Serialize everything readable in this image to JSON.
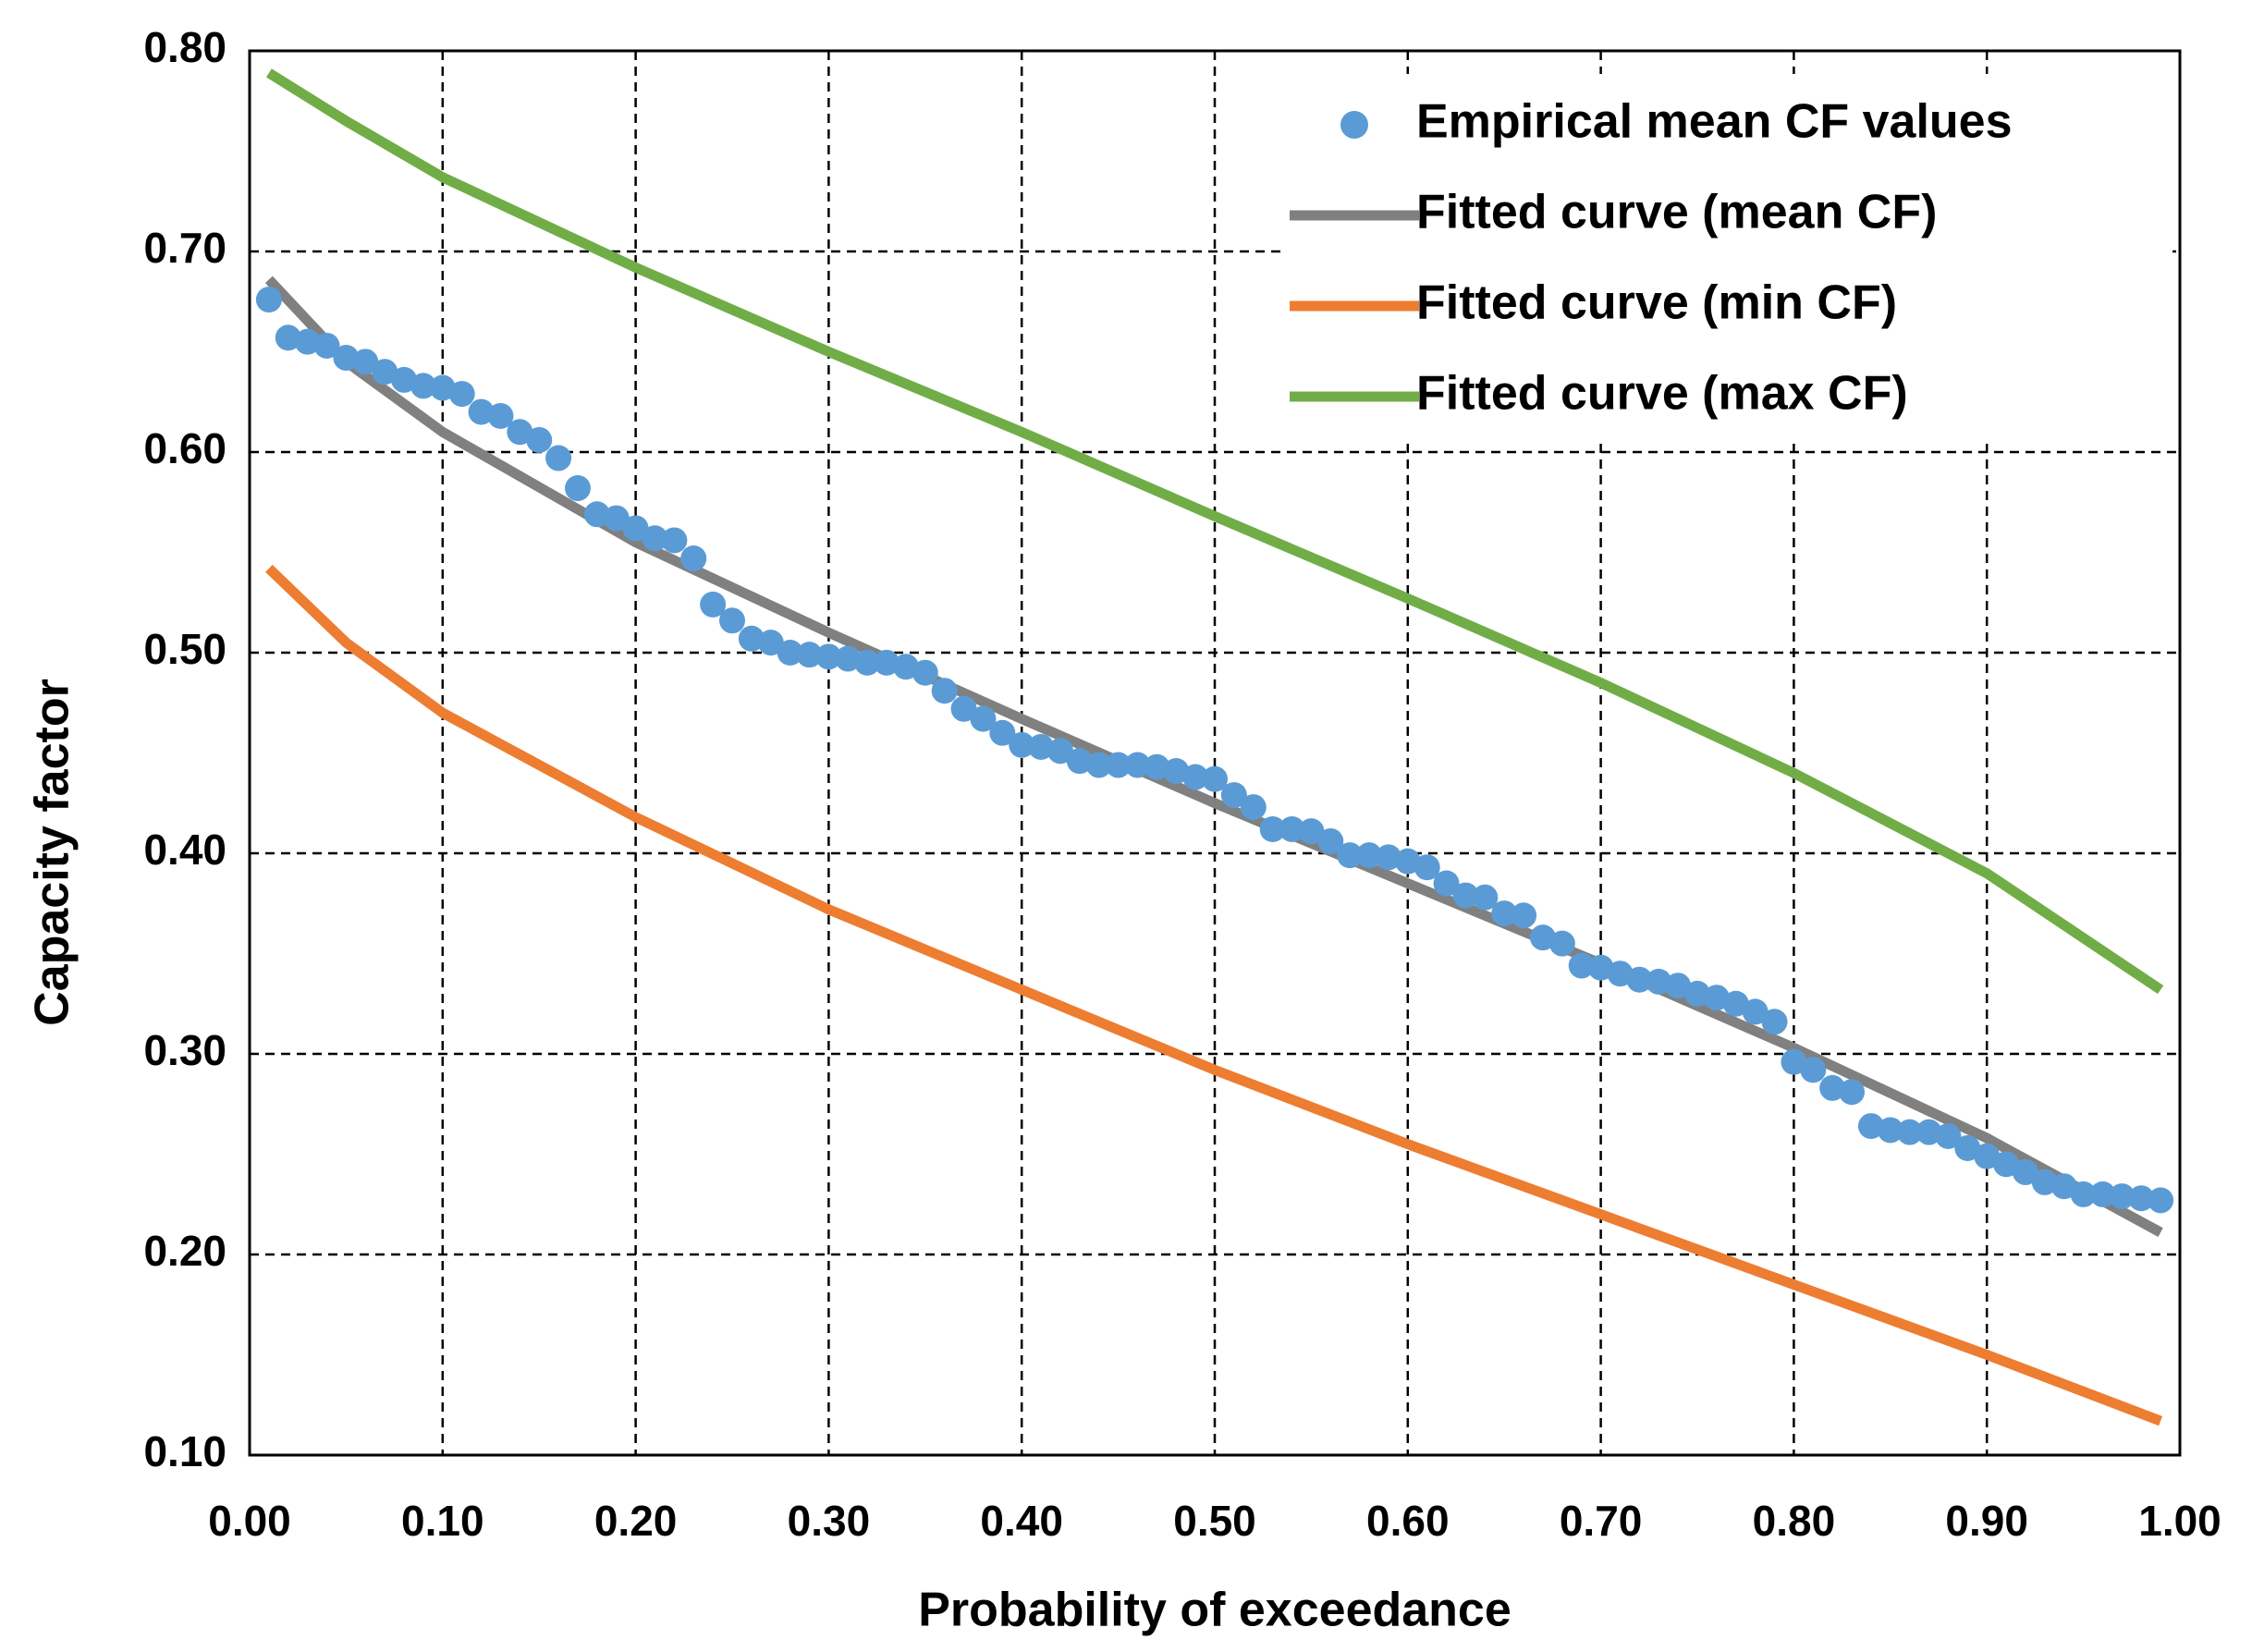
{
  "chart_data": {
    "type": "scatter",
    "xlabel": "Probability of exceedance",
    "ylabel": "Capacity factor",
    "xlim": [
      0,
      1
    ],
    "ylim": [
      0.1,
      0.8
    ],
    "xticks": [
      {
        "value": 0,
        "label": "0.00"
      },
      {
        "value": 0.1,
        "label": "0.10"
      },
      {
        "value": 0.2,
        "label": "0.20"
      },
      {
        "value": 0.3,
        "label": "0.30"
      },
      {
        "value": 0.4,
        "label": "0.40"
      },
      {
        "value": 0.5,
        "label": "0.50"
      },
      {
        "value": 0.6,
        "label": "0.60"
      },
      {
        "value": 0.7,
        "label": "0.70"
      },
      {
        "value": 0.8,
        "label": "0.80"
      },
      {
        "value": 0.9,
        "label": "0.90"
      },
      {
        "value": 1,
        "label": "1.00"
      }
    ],
    "yticks": [
      {
        "value": 0.1,
        "label": "0.10"
      },
      0.2,
      0.3,
      0.4,
      0.5,
      0.6,
      0.7,
      0.8
    ],
    "yticks_note_removed": null,
    "grid": true,
    "legend": "upper right",
    "series": [
      {
        "name": "Empirical mean CF values",
        "kind": "markers",
        "color": "#5b9bd5",
        "x": [
          0.01,
          0.02,
          0.03,
          0.04,
          0.05,
          0.06,
          0.07,
          0.08,
          0.09,
          0.1,
          0.11,
          0.12,
          0.13,
          0.14,
          0.15,
          0.16,
          0.17,
          0.18,
          0.19,
          0.2,
          0.21,
          0.22,
          0.23,
          0.24,
          0.25,
          0.26,
          0.27,
          0.28,
          0.29,
          0.3,
          0.31,
          0.32,
          0.33,
          0.34,
          0.35,
          0.36,
          0.37,
          0.38,
          0.39,
          0.4,
          0.41,
          0.42,
          0.43,
          0.44,
          0.45,
          0.46,
          0.47,
          0.48,
          0.49,
          0.5,
          0.51,
          0.52,
          0.53,
          0.54,
          0.55,
          0.56,
          0.57,
          0.58,
          0.59,
          0.6,
          0.61,
          0.62,
          0.63,
          0.64,
          0.65,
          0.66,
          0.67,
          0.68,
          0.69,
          0.7,
          0.71,
          0.72,
          0.73,
          0.74,
          0.75,
          0.76,
          0.77,
          0.78,
          0.79,
          0.8,
          0.81,
          0.82,
          0.83,
          0.84,
          0.85,
          0.86,
          0.87,
          0.88,
          0.89,
          0.9,
          0.91,
          0.92,
          0.93,
          0.94,
          0.95,
          0.96,
          0.97,
          0.98,
          0.99
        ],
        "values": [
          0.676,
          0.657,
          0.655,
          0.653,
          0.647,
          0.645,
          0.64,
          0.636,
          0.633,
          0.632,
          0.629,
          0.62,
          0.618,
          0.61,
          0.606,
          0.597,
          0.582,
          0.569,
          0.567,
          0.562,
          0.557,
          0.556,
          0.547,
          0.524,
          0.516,
          0.507,
          0.505,
          0.5,
          0.499,
          0.498,
          0.497,
          0.495,
          0.495,
          0.493,
          0.49,
          0.481,
          0.472,
          0.467,
          0.46,
          0.454,
          0.453,
          0.451,
          0.446,
          0.444,
          0.444,
          0.444,
          0.443,
          0.441,
          0.438,
          0.437,
          0.429,
          0.423,
          0.412,
          0.412,
          0.411,
          0.406,
          0.399,
          0.399,
          0.398,
          0.396,
          0.393,
          0.385,
          0.379,
          0.378,
          0.37,
          0.369,
          0.358,
          0.355,
          0.344,
          0.343,
          0.34,
          0.337,
          0.336,
          0.334,
          0.33,
          0.328,
          0.325,
          0.321,
          0.316,
          0.296,
          0.292,
          0.283,
          0.281,
          0.264,
          0.262,
          0.261,
          0.261,
          0.259,
          0.253,
          0.249,
          0.245,
          0.241,
          0.236,
          0.234,
          0.23,
          0.23,
          0.229,
          0.228,
          0.227
        ]
      },
      {
        "name": "Fitted curve (mean CF)",
        "kind": "line",
        "color": "#808080",
        "x": [
          0.01,
          0.05,
          0.1,
          0.2,
          0.3,
          0.4,
          0.5,
          0.6,
          0.7,
          0.8,
          0.9,
          0.99
        ],
        "values": [
          0.686,
          0.645,
          0.61,
          0.555,
          0.51,
          0.467,
          0.425,
          0.385,
          0.345,
          0.303,
          0.258,
          0.211
        ]
      },
      {
        "name": "Fitted curve (min CF)",
        "kind": "line",
        "color": "#ed7d31",
        "x": [
          0.01,
          0.05,
          0.1,
          0.2,
          0.3,
          0.4,
          0.5,
          0.6,
          0.7,
          0.8,
          0.9,
          0.99
        ],
        "values": [
          0.542,
          0.505,
          0.47,
          0.418,
          0.372,
          0.332,
          0.292,
          0.255,
          0.22,
          0.185,
          0.15,
          0.117
        ]
      },
      {
        "name": "Fitted curve (max CF)",
        "kind": "line",
        "color": "#70ad47",
        "x": [
          0.01,
          0.05,
          0.1,
          0.2,
          0.3,
          0.4,
          0.5,
          0.6,
          0.7,
          0.8,
          0.9,
          0.99
        ],
        "values": [
          0.789,
          0.765,
          0.737,
          0.692,
          0.65,
          0.61,
          0.568,
          0.527,
          0.485,
          0.44,
          0.39,
          0.332
        ]
      }
    ]
  }
}
